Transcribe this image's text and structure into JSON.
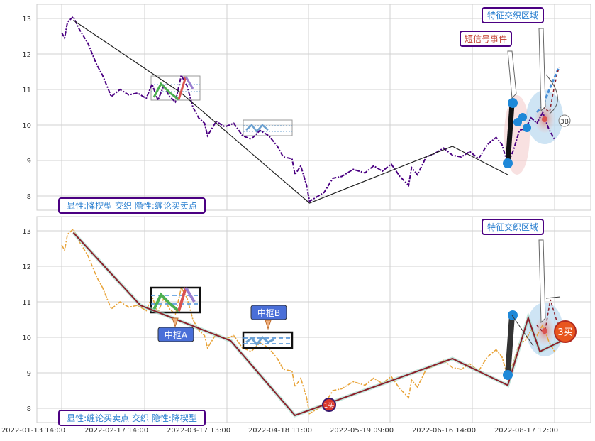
{
  "chart_data": [
    {
      "type": "line",
      "panel": "top",
      "ylim": [
        7.6,
        13.4
      ],
      "yticks": [
        8,
        9,
        10,
        11,
        12,
        13
      ],
      "price_series": [
        [
          0,
          12.6
        ],
        [
          0.01,
          12.45
        ],
        [
          0.02,
          12.9
        ],
        [
          0.04,
          13.05
        ],
        [
          0.06,
          12.7
        ],
        [
          0.09,
          12.3
        ],
        [
          0.12,
          11.7
        ],
        [
          0.14,
          11.4
        ],
        [
          0.17,
          10.8
        ],
        [
          0.2,
          11.0
        ],
        [
          0.23,
          10.85
        ],
        [
          0.26,
          10.9
        ],
        [
          0.29,
          10.75
        ],
        [
          0.31,
          11.15
        ],
        [
          0.33,
          10.7
        ],
        [
          0.35,
          11.1
        ],
        [
          0.37,
          10.8
        ],
        [
          0.39,
          10.65
        ],
        [
          0.41,
          11.4
        ],
        [
          0.43,
          11.1
        ],
        [
          0.45,
          10.5
        ],
        [
          0.47,
          10.2
        ],
        [
          0.49,
          10.05
        ],
        [
          0.5,
          9.7
        ],
        [
          0.53,
          10.1
        ],
        [
          0.56,
          9.95
        ],
        [
          0.59,
          10.05
        ],
        [
          0.62,
          9.7
        ],
        [
          0.65,
          9.6
        ],
        [
          0.68,
          9.85
        ],
        [
          0.71,
          9.7
        ],
        [
          0.74,
          9.4
        ],
        [
          0.76,
          9.1
        ],
        [
          0.79,
          9.05
        ],
        [
          0.8,
          8.6
        ],
        [
          0.82,
          8.85
        ],
        [
          0.84,
          8.3
        ],
        [
          0.85,
          7.85
        ],
        [
          0.87,
          7.95
        ],
        [
          0.9,
          8.1
        ],
        [
          0.93,
          8.5
        ],
        [
          0.96,
          8.55
        ],
        [
          1.0,
          8.75
        ],
        [
          1.04,
          8.65
        ],
        [
          1.07,
          8.85
        ],
        [
          1.1,
          8.7
        ],
        [
          1.13,
          8.9
        ],
        [
          1.16,
          8.55
        ],
        [
          1.19,
          8.3
        ],
        [
          1.2,
          8.8
        ],
        [
          1.22,
          8.6
        ],
        [
          1.25,
          9.1
        ],
        [
          1.28,
          9.2
        ],
        [
          1.31,
          9.35
        ],
        [
          1.34,
          9.15
        ],
        [
          1.37,
          9.1
        ],
        [
          1.4,
          9.25
        ],
        [
          1.43,
          9.05
        ],
        [
          1.46,
          9.45
        ],
        [
          1.49,
          9.65
        ],
        [
          1.51,
          9.45
        ],
        [
          1.53,
          8.9
        ],
        [
          1.55,
          9.3
        ],
        [
          1.57,
          9.85
        ],
        [
          1.59,
          9.9
        ],
        [
          1.61,
          10.2
        ],
        [
          1.63,
          10.05
        ],
        [
          1.65,
          10.35
        ],
        [
          1.67,
          9.9
        ],
        [
          1.69,
          9.6
        ]
      ],
      "bi": [
        [
          0.04,
          12.95
        ],
        [
          0.41,
          10.9
        ],
        [
          0.85,
          7.8
        ],
        [
          1.34,
          9.4
        ],
        [
          1.53,
          8.6
        ]
      ],
      "tick_labels": [
        "2022-01-13 14:00",
        "2022-02-17 14:00",
        "2022-03-17 13:00",
        "2022-04-18 11:00",
        "2022-05-19 09:00",
        "2022-06-16 14:00",
        "2022-08-17 12:00"
      ],
      "annotations": {
        "title_box": "显性:降楔型 交织 隐性:缠论买卖点",
        "feature_zone": "特征交织区域",
        "short_signal": "短信号事件",
        "buy_label": "3B"
      }
    },
    {
      "type": "line",
      "panel": "bottom",
      "ylim": [
        7.6,
        13.4
      ],
      "yticks": [
        8,
        9,
        10,
        11,
        12,
        13
      ],
      "bi": [
        [
          0.04,
          12.95
        ],
        [
          0.27,
          10.9
        ],
        [
          0.58,
          9.9
        ],
        [
          0.8,
          7.8
        ],
        [
          1.34,
          9.4
        ],
        [
          1.53,
          8.65
        ],
        [
          1.6,
          10.55
        ],
        [
          1.64,
          9.6
        ],
        [
          1.74,
          10.0
        ]
      ],
      "zhongshu": [
        {
          "label": "中枢A",
          "x0": 0.27,
          "x1": 0.39,
          "ylo": 10.6,
          "yhi": 11.4
        },
        {
          "label": "中枢B",
          "x0": 0.58,
          "x1": 0.69,
          "ylo": 9.5,
          "yhi": 10.0
        }
      ],
      "tick_labels": [
        "2022-01-13 14:00",
        "2022-02-17 14:00",
        "2022-03-17 13:00",
        "2022-04-18 11:00",
        "2022-05-19 09:00",
        "2022-06-16 14:00",
        "2022-08-17 12:00"
      ],
      "annotations": {
        "title_box": "显性:缠论买卖点 交织 隐性:降楔型",
        "feature_zone": "特征交织区域",
        "buy1": "1买",
        "buy3": "3买"
      }
    }
  ],
  "colors": {
    "top_price": "#4b0082",
    "bottom_price": "#e8a43a",
    "bi": "#222222",
    "box_border": "#4b0082",
    "label_fill": "#4a6fd8",
    "grid": "#d0d0d0",
    "blue_dot": "#1e88d8"
  }
}
